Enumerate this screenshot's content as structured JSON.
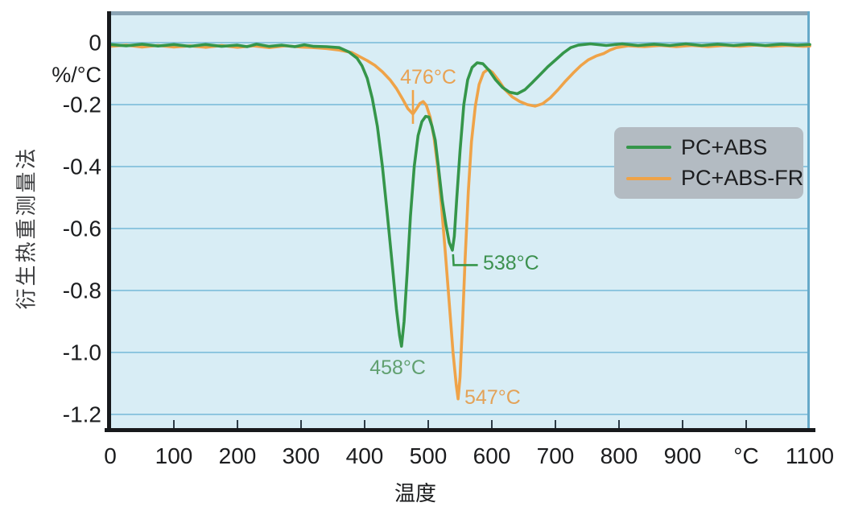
{
  "chart_data": {
    "type": "line",
    "title": "",
    "xlabel": "温度",
    "ylabel": "衍生热重测量法",
    "y_unit": "%/°C",
    "xlim": [
      0,
      1100
    ],
    "ylim": [
      -1.25,
      0.1
    ],
    "grid": true,
    "legend_position": "right-middle",
    "x_ticks": [
      {
        "value": 0,
        "label": "0"
      },
      {
        "value": 100,
        "label": "100"
      },
      {
        "value": 200,
        "label": "200"
      },
      {
        "value": 300,
        "label": "300"
      },
      {
        "value": 400,
        "label": "400"
      },
      {
        "value": 500,
        "label": "500"
      },
      {
        "value": 600,
        "label": "600"
      },
      {
        "value": 700,
        "label": "700"
      },
      {
        "value": 800,
        "label": "800"
      },
      {
        "value": 900,
        "label": "900"
      },
      {
        "value": 1000,
        "label": "°C"
      },
      {
        "value": 1100,
        "label": "1100"
      }
    ],
    "y_ticks": [
      {
        "value": 0,
        "label": "0"
      },
      {
        "value": -0.2,
        "label": "-0.2"
      },
      {
        "value": -0.4,
        "label": "-0.4"
      },
      {
        "value": -0.6,
        "label": "-0.6"
      },
      {
        "value": -0.8,
        "label": "-0.8"
      },
      {
        "value": -1.0,
        "label": "-1.0"
      },
      {
        "value": -1.2,
        "label": "-1.2"
      }
    ],
    "series": [
      {
        "name": "PC+ABS-FR",
        "color": "#efa348",
        "peaks": [
          {
            "temp_c": 476,
            "dtg": -0.23
          },
          {
            "temp_c": 547,
            "dtg": -1.15
          }
        ],
        "points": [
          [
            0,
            -0.012
          ],
          [
            25,
            -0.008
          ],
          [
            50,
            -0.014
          ],
          [
            75,
            -0.009
          ],
          [
            100,
            -0.014
          ],
          [
            125,
            -0.01
          ],
          [
            150,
            -0.015
          ],
          [
            175,
            -0.009
          ],
          [
            200,
            -0.015
          ],
          [
            225,
            -0.01
          ],
          [
            250,
            -0.016
          ],
          [
            275,
            -0.01
          ],
          [
            300,
            -0.014
          ],
          [
            320,
            -0.016
          ],
          [
            340,
            -0.019
          ],
          [
            360,
            -0.024
          ],
          [
            380,
            -0.032
          ],
          [
            392,
            -0.045
          ],
          [
            404,
            -0.058
          ],
          [
            416,
            -0.073
          ],
          [
            428,
            -0.094
          ],
          [
            440,
            -0.12
          ],
          [
            450,
            -0.148
          ],
          [
            460,
            -0.183
          ],
          [
            468,
            -0.213
          ],
          [
            476,
            -0.23
          ],
          [
            481,
            -0.215
          ],
          [
            487,
            -0.196
          ],
          [
            492,
            -0.19
          ],
          [
            497,
            -0.202
          ],
          [
            503,
            -0.24
          ],
          [
            509,
            -0.305
          ],
          [
            515,
            -0.405
          ],
          [
            521,
            -0.53
          ],
          [
            527,
            -0.68
          ],
          [
            533,
            -0.84
          ],
          [
            539,
            -1.0
          ],
          [
            544,
            -1.105
          ],
          [
            547,
            -1.15
          ],
          [
            550,
            -1.08
          ],
          [
            554,
            -0.9
          ],
          [
            558,
            -0.7
          ],
          [
            563,
            -0.48
          ],
          [
            568,
            -0.32
          ],
          [
            574,
            -0.205
          ],
          [
            580,
            -0.135
          ],
          [
            587,
            -0.097
          ],
          [
            594,
            -0.086
          ],
          [
            601,
            -0.096
          ],
          [
            610,
            -0.12
          ],
          [
            620,
            -0.15
          ],
          [
            632,
            -0.175
          ],
          [
            644,
            -0.19
          ],
          [
            656,
            -0.2
          ],
          [
            668,
            -0.205
          ],
          [
            680,
            -0.197
          ],
          [
            692,
            -0.178
          ],
          [
            704,
            -0.152
          ],
          [
            716,
            -0.124
          ],
          [
            728,
            -0.098
          ],
          [
            740,
            -0.074
          ],
          [
            752,
            -0.055
          ],
          [
            764,
            -0.043
          ],
          [
            776,
            -0.035
          ],
          [
            786,
            -0.024
          ],
          [
            796,
            -0.016
          ],
          [
            815,
            -0.01
          ],
          [
            840,
            -0.013
          ],
          [
            865,
            -0.009
          ],
          [
            890,
            -0.013
          ],
          [
            915,
            -0.009
          ],
          [
            940,
            -0.013
          ],
          [
            965,
            -0.009
          ],
          [
            990,
            -0.012
          ],
          [
            1015,
            -0.008
          ],
          [
            1040,
            -0.012
          ],
          [
            1065,
            -0.009
          ],
          [
            1090,
            -0.012
          ],
          [
            1100,
            -0.011
          ]
        ]
      },
      {
        "name": "PC+ABS",
        "color": "#35964a",
        "peaks": [
          {
            "temp_c": 458,
            "dtg": -0.98
          },
          {
            "temp_c": 538,
            "dtg": -0.67
          }
        ],
        "points": [
          [
            0,
            -0.006
          ],
          [
            25,
            -0.01
          ],
          [
            50,
            -0.005
          ],
          [
            75,
            -0.011
          ],
          [
            100,
            -0.006
          ],
          [
            125,
            -0.012
          ],
          [
            150,
            -0.006
          ],
          [
            175,
            -0.012
          ],
          [
            200,
            -0.008
          ],
          [
            215,
            -0.013
          ],
          [
            230,
            -0.005
          ],
          [
            250,
            -0.012
          ],
          [
            270,
            -0.008
          ],
          [
            290,
            -0.013
          ],
          [
            305,
            -0.007
          ],
          [
            320,
            -0.012
          ],
          [
            340,
            -0.013
          ],
          [
            360,
            -0.016
          ],
          [
            375,
            -0.03
          ],
          [
            388,
            -0.05
          ],
          [
            396,
            -0.075
          ],
          [
            404,
            -0.115
          ],
          [
            412,
            -0.18
          ],
          [
            420,
            -0.27
          ],
          [
            428,
            -0.4
          ],
          [
            436,
            -0.56
          ],
          [
            444,
            -0.73
          ],
          [
            450,
            -0.86
          ],
          [
            455,
            -0.945
          ],
          [
            458,
            -0.98
          ],
          [
            462,
            -0.9
          ],
          [
            467,
            -0.74
          ],
          [
            472,
            -0.56
          ],
          [
            478,
            -0.4
          ],
          [
            484,
            -0.3
          ],
          [
            490,
            -0.255
          ],
          [
            496,
            -0.238
          ],
          [
            501,
            -0.24
          ],
          [
            506,
            -0.27
          ],
          [
            511,
            -0.315
          ],
          [
            516,
            -0.4
          ],
          [
            522,
            -0.51
          ],
          [
            528,
            -0.59
          ],
          [
            533,
            -0.645
          ],
          [
            538,
            -0.67
          ],
          [
            541,
            -0.625
          ],
          [
            545,
            -0.5
          ],
          [
            550,
            -0.35
          ],
          [
            556,
            -0.2
          ],
          [
            562,
            -0.12
          ],
          [
            569,
            -0.08
          ],
          [
            577,
            -0.065
          ],
          [
            586,
            -0.068
          ],
          [
            596,
            -0.09
          ],
          [
            606,
            -0.12
          ],
          [
            617,
            -0.145
          ],
          [
            628,
            -0.16
          ],
          [
            640,
            -0.165
          ],
          [
            652,
            -0.152
          ],
          [
            664,
            -0.128
          ],
          [
            676,
            -0.103
          ],
          [
            688,
            -0.078
          ],
          [
            700,
            -0.056
          ],
          [
            712,
            -0.034
          ],
          [
            724,
            -0.016
          ],
          [
            736,
            -0.008
          ],
          [
            755,
            -0.004
          ],
          [
            780,
            -0.009
          ],
          [
            805,
            -0.004
          ],
          [
            830,
            -0.009
          ],
          [
            855,
            -0.005
          ],
          [
            880,
            -0.009
          ],
          [
            905,
            -0.004
          ],
          [
            930,
            -0.009
          ],
          [
            955,
            -0.005
          ],
          [
            980,
            -0.009
          ],
          [
            1005,
            -0.005
          ],
          [
            1030,
            -0.009
          ],
          [
            1055,
            -0.005
          ],
          [
            1080,
            -0.008
          ],
          [
            1100,
            -0.006
          ]
        ]
      }
    ],
    "annotations": [
      {
        "text": "476°C",
        "color": "#e8a253",
        "t": 500,
        "v": -0.112,
        "align": "middle",
        "leader": {
          "color": "#efa348",
          "points": [
            [
              476,
              -0.153
            ],
            [
              476,
              -0.262
            ]
          ]
        }
      },
      {
        "text": "538°C",
        "color": "#3d914f",
        "t": 586,
        "v": -0.712,
        "align": "start",
        "leader": {
          "color": "#35964a",
          "points": [
            [
              539,
              -0.683
            ],
            [
              540,
              -0.718
            ],
            [
              578,
              -0.718
            ]
          ]
        }
      },
      {
        "text": "458°C",
        "color": "#61a070",
        "t": 452,
        "v": -1.049,
        "align": "middle",
        "leader": null
      },
      {
        "text": "547°C",
        "color": "#e3a258",
        "t": 557,
        "v": -1.145,
        "align": "start",
        "leader": null
      }
    ]
  },
  "legend": {
    "items": [
      {
        "label": "PC+ABS",
        "color": "#35964a"
      },
      {
        "label": "PC+ABS-FR",
        "color": "#efa348"
      }
    ]
  },
  "colors": {
    "plot_bg": "#d8edf5",
    "gridline": "#76b9d8",
    "top_border": "#8ba4b4",
    "right_border": "#66a9c9",
    "axis_line": "#17191c",
    "tick_mark": "#2c3b47",
    "tick_text": "#1b1c1e",
    "legend_bg": "#b3bbc2"
  }
}
